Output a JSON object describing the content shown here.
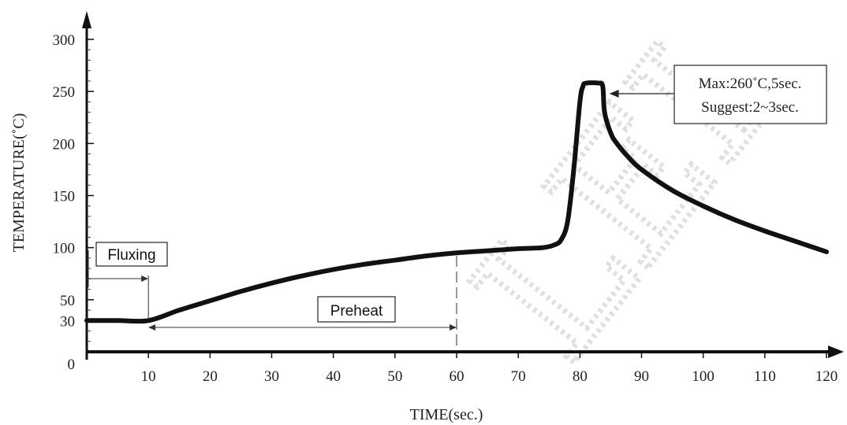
{
  "chart_data": {
    "type": "line",
    "xlabel": "TIME(sec.)",
    "ylabel": "TEMPERATURE(˚C)",
    "xlim": [
      0,
      120
    ],
    "ylim": [
      0,
      300
    ],
    "x_ticks": [
      10,
      20,
      30,
      40,
      50,
      60,
      70,
      80,
      90,
      100,
      110,
      120
    ],
    "y_ticks": [
      0,
      30,
      50,
      100,
      150,
      200,
      250,
      300
    ],
    "grid": false,
    "series": [
      {
        "x": [
          0,
          5,
          10,
          15,
          20,
          25,
          30,
          35,
          40,
          45,
          50,
          55,
          60,
          65,
          70,
          74,
          76,
          77,
          78,
          79,
          80,
          80.5,
          81,
          83,
          83.7,
          84,
          85,
          86,
          88,
          90,
          95,
          100,
          105,
          110,
          115,
          120
        ],
        "y": [
          30,
          30,
          30,
          40,
          49,
          58,
          66,
          73,
          79,
          84,
          88,
          92,
          95,
          97,
          99,
          100,
          103,
          108,
          125,
          175,
          240,
          255,
          258,
          258,
          255,
          230,
          210,
          200,
          186,
          175,
          155,
          140,
          127,
          116,
          106,
          96
        ]
      }
    ],
    "annotations": {
      "fluxing": {
        "label": "Fluxing",
        "x_start": 0,
        "x_end": 10
      },
      "preheat": {
        "label": "Preheat",
        "x_start": 10,
        "x_end": 60
      },
      "peak_note": {
        "lines": [
          "Max:260˚C,5sec.",
          "Suggest:2~3sec."
        ],
        "points_to_x": 84,
        "points_to_y": 250
      }
    },
    "watermark": "LEI"
  }
}
